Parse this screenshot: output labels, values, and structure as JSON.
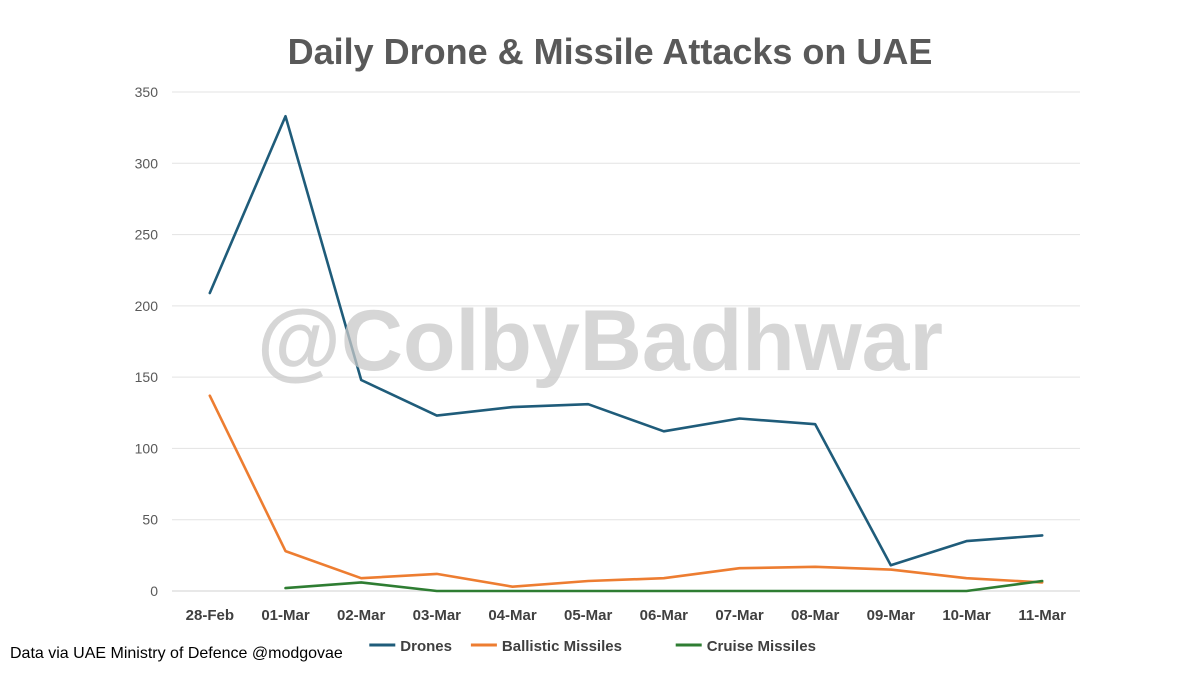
{
  "watermark": "@ColbyBadhwar",
  "source_note": "Data via UAE Ministry of Defence @modgovae",
  "chart_data": {
    "type": "line",
    "title": "Daily Drone & Missile Attacks on UAE",
    "xlabel": "",
    "ylabel": "",
    "categories": [
      "28-Feb",
      "01-Mar",
      "02-Mar",
      "03-Mar",
      "04-Mar",
      "05-Mar",
      "06-Mar",
      "07-Mar",
      "08-Mar",
      "09-Mar",
      "10-Mar",
      "11-Mar"
    ],
    "ylim": [
      0,
      350
    ],
    "yticks": [
      0,
      50,
      100,
      150,
      200,
      250,
      300,
      350
    ],
    "grid": true,
    "legend_position": "bottom",
    "series": [
      {
        "name": "Drones",
        "color": "#1f5c7a",
        "values": [
          209,
          333,
          148,
          123,
          129,
          131,
          112,
          121,
          117,
          18,
          35,
          39
        ]
      },
      {
        "name": "Ballistic Missiles",
        "color": "#ed7d31",
        "values": [
          137,
          28,
          9,
          12,
          3,
          7,
          9,
          16,
          17,
          15,
          9,
          6
        ]
      },
      {
        "name": "Cruise Missiles",
        "color": "#2e7d32",
        "values": [
          null,
          2,
          6,
          0,
          0,
          0,
          0,
          0,
          0,
          0,
          0,
          7
        ]
      }
    ]
  }
}
